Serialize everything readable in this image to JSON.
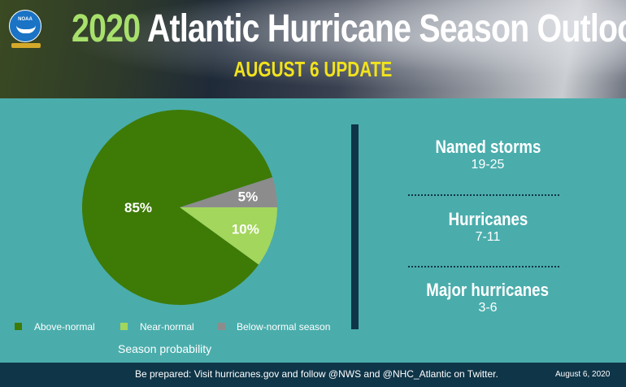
{
  "header": {
    "title_year": "2020",
    "title_rest": "Atlantic Hurricane Season Outlook",
    "subtitle": "AUGUST 6 UPDATE",
    "logo_text": "NOAA"
  },
  "chart_data": {
    "type": "pie",
    "caption": "Season probability",
    "slices": [
      {
        "name": "Above-normal",
        "value": 85,
        "label": "85%",
        "color": "#3e7a06"
      },
      {
        "name": "Near-normal",
        "value": 10,
        "label": "10%",
        "color": "#a3d65c"
      },
      {
        "name": "Below-normal season",
        "value": 5,
        "label": "5%",
        "color": "#8c8c8c"
      }
    ],
    "legend_position": "bottom"
  },
  "stats": [
    {
      "label": "Named storms",
      "value": "19-25"
    },
    {
      "label": "Hurricanes",
      "value": "7-11"
    },
    {
      "label": "Major hurricanes",
      "value": "3-6"
    }
  ],
  "footer": {
    "message": "Be prepared: Visit hurricanes.gov and follow @NWS and @NHC_Atlantic on Twitter.",
    "date": "August 6, 2020"
  }
}
